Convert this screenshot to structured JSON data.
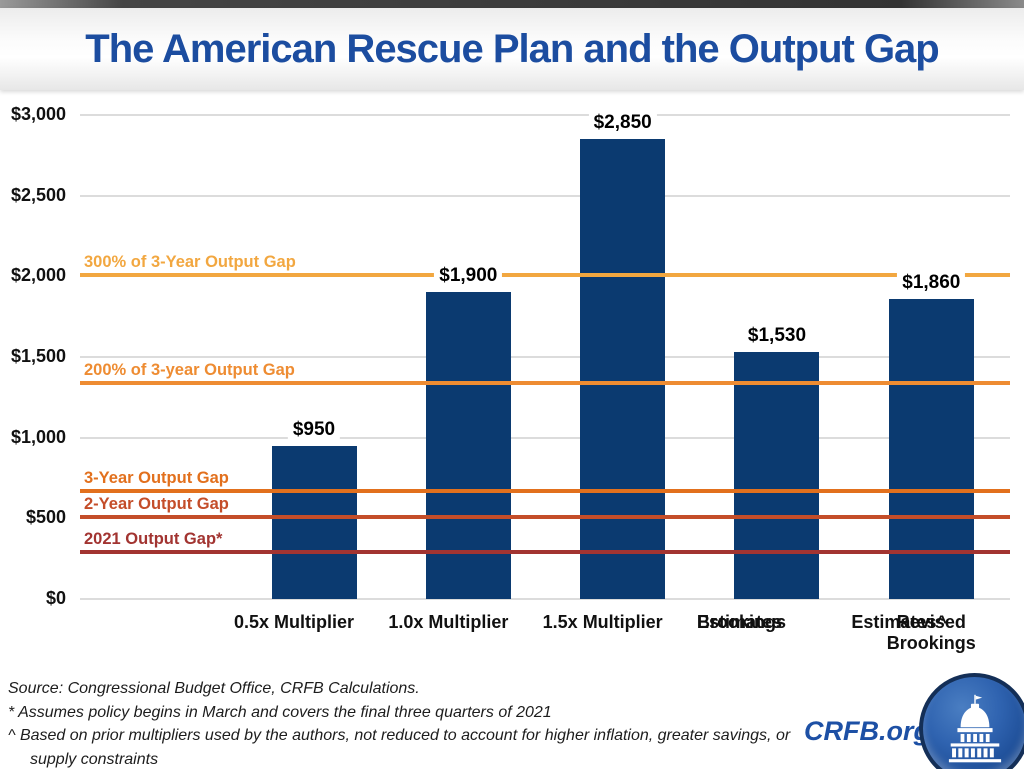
{
  "title": "The American Rescue Plan and the Output Gap",
  "branding": {
    "site": "CRFB.org",
    "logo_icon": "capitol-dome-icon",
    "brand_blue": "#1D50A5",
    "logo_navy": "#142F57"
  },
  "footer": {
    "source": "Source: Congressional Budget Office, CRFB Calculations.",
    "note_asterisk": "* Assumes policy begins in March and covers the final three quarters of 2021",
    "note_caret": "^ Based on prior multipliers used by the authors, not reduced to account for higher inflation, greater savings, or supply constraints"
  },
  "chart_data": {
    "type": "bar",
    "title": "The American Rescue Plan and the Output Gap",
    "xlabel": "",
    "ylabel": "",
    "ylim": [
      0,
      3000
    ],
    "grid": true,
    "legend": false,
    "bar_color": "#0B3A70",
    "gridline_color": "#DCDCDC",
    "y_ticks": [
      {
        "value": 0,
        "label": "$0"
      },
      {
        "value": 500,
        "label": "$500"
      },
      {
        "value": 1000,
        "label": "$1,000"
      },
      {
        "value": 1500,
        "label": "$1,500"
      },
      {
        "value": 2000,
        "label": "$2,000"
      },
      {
        "value": 2500,
        "label": "$2,500"
      },
      {
        "value": 3000,
        "label": "$3,000"
      }
    ],
    "categories": [
      "0.5x Multiplier",
      "1.0x Multiplier",
      "1.5x Multiplier",
      "Brookings Estimates",
      "Revised Brookings Estimates^"
    ],
    "bars": [
      {
        "category_lines": [
          "0.5x Multiplier"
        ],
        "value": 950,
        "label": "$950"
      },
      {
        "category_lines": [
          "1.0x Multiplier"
        ],
        "value": 1900,
        "label": "$1,900"
      },
      {
        "category_lines": [
          "1.5x Multiplier"
        ],
        "value": 2850,
        "label": "$2,850"
      },
      {
        "category_lines": [
          "Brookings",
          "Estimates"
        ],
        "value": 1530,
        "label": "$1,530"
      },
      {
        "category_lines": [
          "Revised Brookings",
          "Estimates^"
        ],
        "value": 1860,
        "label": "$1,860"
      }
    ],
    "reference_lines": [
      {
        "label": "300% of 3-Year Output Gap",
        "value": 2010,
        "color": "#F2A740"
      },
      {
        "label": "200% of 3-year Output Gap",
        "value": 1340,
        "color": "#EE8C32"
      },
      {
        "label": "3-Year Output Gap",
        "value": 670,
        "color": "#E2701D"
      },
      {
        "label": "2-Year Output Gap",
        "value": 510,
        "color": "#C44D29"
      },
      {
        "label": "2021 Output Gap*",
        "value": 290,
        "color": "#A23431"
      }
    ]
  }
}
